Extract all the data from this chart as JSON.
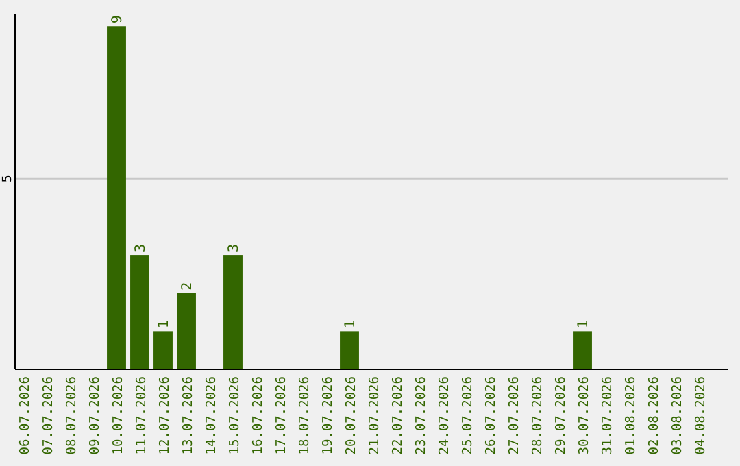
{
  "chart_data": {
    "type": "bar",
    "categories": [
      "06.07.2026",
      "07.07.2026",
      "08.07.2026",
      "09.07.2026",
      "10.07.2026",
      "11.07.2026",
      "12.07.2026",
      "13.07.2026",
      "14.07.2026",
      "15.07.2026",
      "16.07.2026",
      "17.07.2026",
      "18.07.2026",
      "19.07.2026",
      "20.07.2026",
      "21.07.2026",
      "22.07.2026",
      "23.07.2026",
      "24.07.2026",
      "25.07.2026",
      "26.07.2026",
      "27.07.2026",
      "28.07.2026",
      "29.07.2026",
      "30.07.2026",
      "31.07.2026",
      "01.08.2026",
      "02.08.2026",
      "03.08.2026",
      "04.08.2026"
    ],
    "values": [
      0,
      0,
      0,
      0,
      9,
      3,
      1,
      2,
      0,
      3,
      0,
      0,
      0,
      0,
      1,
      0,
      0,
      0,
      0,
      0,
      0,
      0,
      0,
      0,
      1,
      0,
      0,
      0,
      0,
      0
    ],
    "value_labels": [
      null,
      null,
      null,
      null,
      "9",
      "3",
      "1",
      "2",
      null,
      "3",
      null,
      null,
      null,
      null,
      "1",
      null,
      null,
      null,
      null,
      null,
      null,
      null,
      null,
      null,
      "1",
      null,
      null,
      null,
      null,
      null
    ],
    "color": "#336600",
    "ylim": [
      0,
      9.4
    ],
    "yticks": [
      5
    ],
    "grid": "y"
  }
}
